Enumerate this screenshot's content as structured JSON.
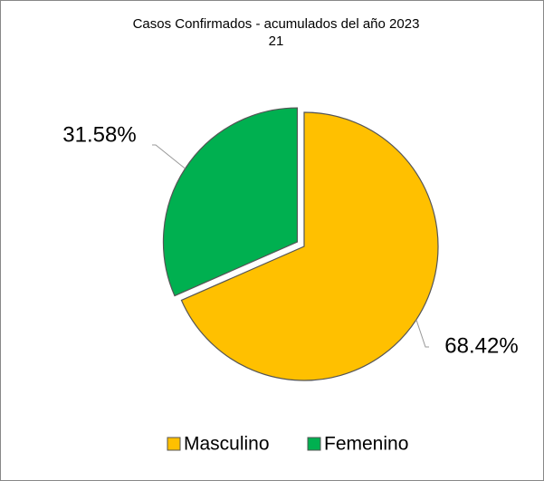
{
  "chart_data": {
    "type": "pie",
    "title": "Casos Confirmados - acumulados del año 2023",
    "subtitle": "21",
    "categories": [
      "Masculino",
      "Femenino"
    ],
    "values": [
      68.42,
      31.58
    ],
    "value_labels": [
      "68.42%",
      "31.58%"
    ],
    "colors": [
      "#FFC000",
      "#00B050"
    ],
    "legend": "bottom"
  }
}
